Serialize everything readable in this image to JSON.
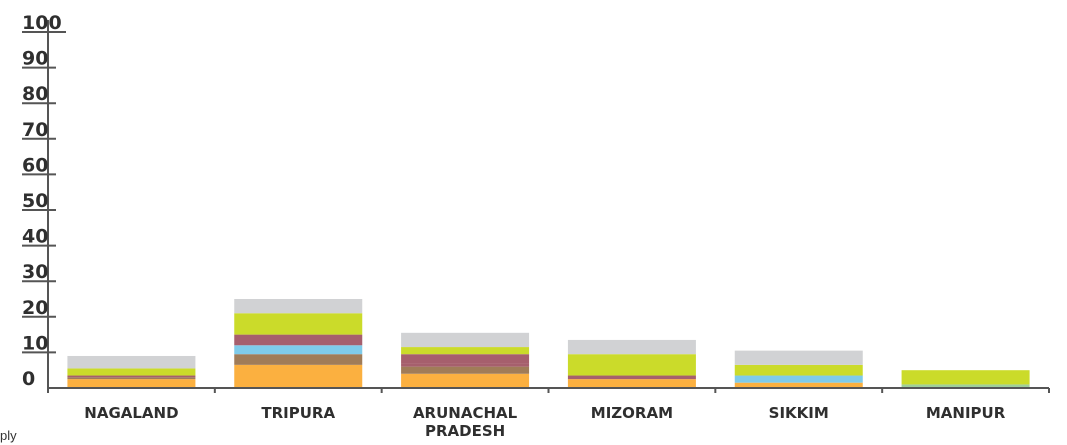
{
  "chart_data": {
    "type": "bar",
    "stacked": true,
    "title": "",
    "xlabel": "",
    "ylabel": "",
    "ylim": [
      0,
      100
    ],
    "yticks": [
      0,
      10,
      20,
      30,
      40,
      50,
      60,
      70,
      80,
      90,
      100
    ],
    "categories": [
      [
        "NAGALAND"
      ],
      [
        "TRIPURA"
      ],
      [
        "ARUNACHAL",
        "PRADESH"
      ],
      [
        "MIZORAM"
      ],
      [
        "SIKKIM"
      ],
      [
        "MANIPUR"
      ]
    ],
    "series": [
      {
        "color": "#fbb040",
        "values": [
          2.5,
          6.5,
          4.0,
          2.5,
          1.5,
          0.0
        ]
      },
      {
        "color": "#a07c58",
        "values": [
          0.5,
          3.0,
          2.0,
          0.0,
          0.0,
          0.0
        ]
      },
      {
        "color": "#7fcbea",
        "values": [
          0.0,
          2.5,
          0.0,
          0.0,
          2.0,
          0.0
        ]
      },
      {
        "color": "#a65f6d",
        "values": [
          0.5,
          3.0,
          1.0,
          1.0,
          0.0,
          0.0
        ]
      },
      {
        "color": "#a65f6d",
        "values": [
          0.0,
          0.0,
          2.5,
          0.0,
          0.0,
          0.0
        ]
      },
      {
        "color": "#9fcf9a",
        "values": [
          0.0,
          0.0,
          0.0,
          0.0,
          0.0,
          1.0
        ]
      },
      {
        "color": "#cbdb2a",
        "values": [
          2.0,
          6.0,
          2.0,
          6.0,
          3.0,
          4.0
        ]
      },
      {
        "color": "#d1d2d4",
        "values": [
          3.5,
          4.0,
          4.0,
          4.0,
          4.0,
          0.0
        ]
      }
    ],
    "grid": false,
    "legend": "none"
  },
  "footnote": "ply"
}
